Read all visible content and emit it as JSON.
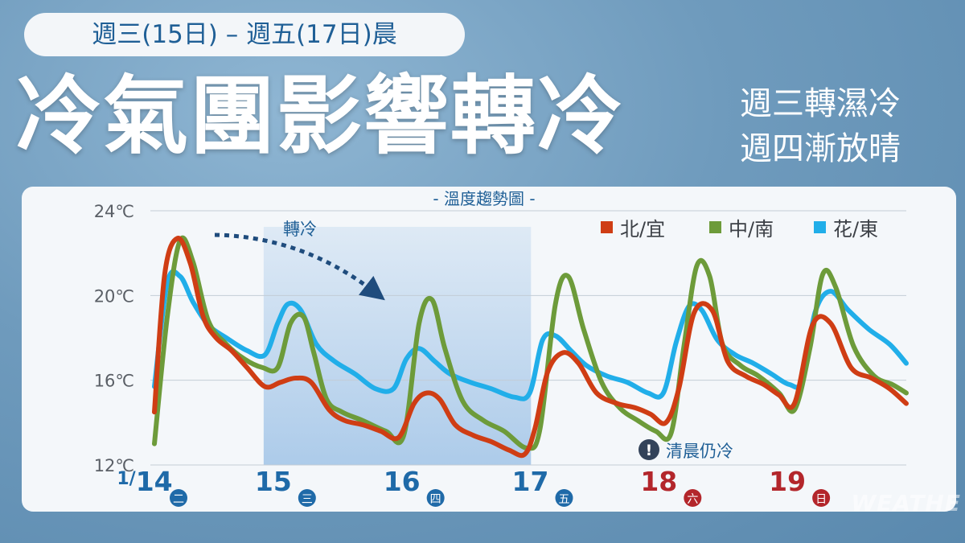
{
  "header": {
    "date_range": "週三(15日) – 週五(17日)晨",
    "headline": "冷氣團影響轉冷",
    "subline_1": "週三轉濕冷",
    "subline_2": "週四漸放晴"
  },
  "watermark": "WEATHE",
  "colors": {
    "north_yi": "#cf3d14",
    "central_south": "#6d9b3a",
    "hua_tung": "#21aee9",
    "date_blue": "#1f6aa8",
    "weekend_red": "#b3262b",
    "highlight": "#a8c8e8",
    "arrow": "#1f4c7d"
  },
  "chart_data": {
    "type": "line",
    "title": "- 溫度趨勢圖 -",
    "ylim": [
      12,
      24
    ],
    "y_ticks": [
      24,
      20,
      16,
      12
    ],
    "y_tick_labels": [
      "24℃",
      "20℃",
      "16℃",
      "12℃"
    ],
    "xlim": [
      0,
      5.85
    ],
    "x_day_labels": [
      {
        "prefix": "1/",
        "day": "14",
        "weekday": "二",
        "weekend": false
      },
      {
        "prefix": "",
        "day": "15",
        "weekday": "三",
        "weekend": false
      },
      {
        "prefix": "",
        "day": "16",
        "weekday": "四",
        "weekend": false
      },
      {
        "prefix": "",
        "day": "17",
        "weekday": "五",
        "weekend": false
      },
      {
        "prefix": "",
        "day": "18",
        "weekday": "六",
        "weekend": true
      },
      {
        "prefix": "",
        "day": "19",
        "weekday": "日",
        "weekend": true
      }
    ],
    "highlight_range": [
      0.85,
      2.93
    ],
    "grid": true,
    "legend_position": "top-right",
    "annotations": {
      "cooling": "轉冷",
      "morning_cold": "清晨仍冷",
      "alert_symbol": "!"
    },
    "series": [
      {
        "name": "北/宜",
        "color_key": "north_yi",
        "x": [
          0,
          0.08,
          0.18,
          0.28,
          0.38,
          0.48,
          0.6,
          0.72,
          0.86,
          0.98,
          1.1,
          1.22,
          1.36,
          1.48,
          1.62,
          1.76,
          1.9,
          2.02,
          2.12,
          2.22,
          2.34,
          2.48,
          2.62,
          2.76,
          2.88,
          2.96,
          3.06,
          3.18,
          3.3,
          3.44,
          3.6,
          3.74,
          3.86,
          3.98,
          4.08,
          4.2,
          4.34,
          4.46,
          4.6,
          4.74,
          4.86,
          4.98,
          5.12,
          5.26,
          5.42,
          5.58,
          5.72,
          5.85
        ],
        "y": [
          14.5,
          21.0,
          22.7,
          21.5,
          19.0,
          18.0,
          17.4,
          16.6,
          15.7,
          15.9,
          16.1,
          15.9,
          14.6,
          14.1,
          13.9,
          13.6,
          13.3,
          14.9,
          15.4,
          15.1,
          13.9,
          13.4,
          13.1,
          12.7,
          12.5,
          13.7,
          16.4,
          17.3,
          16.8,
          15.4,
          14.9,
          14.7,
          14.4,
          14.0,
          15.6,
          19.2,
          19.3,
          16.9,
          16.2,
          15.8,
          15.3,
          14.9,
          18.6,
          18.7,
          16.6,
          16.1,
          15.6,
          14.9
        ]
      },
      {
        "name": "中/南",
        "color_key": "central_south",
        "x": [
          0,
          0.1,
          0.2,
          0.3,
          0.42,
          0.56,
          0.7,
          0.84,
          0.96,
          1.06,
          1.16,
          1.24,
          1.34,
          1.46,
          1.62,
          1.8,
          1.94,
          2.06,
          2.16,
          2.26,
          2.4,
          2.56,
          2.72,
          2.9,
          3.0,
          3.12,
          3.22,
          3.34,
          3.48,
          3.62,
          3.76,
          3.9,
          4.02,
          4.12,
          4.22,
          4.32,
          4.42,
          4.56,
          4.7,
          4.86,
          4.98,
          5.1,
          5.2,
          5.3,
          5.44,
          5.6,
          5.74,
          5.85
        ],
        "y": [
          13.0,
          19.0,
          22.6,
          21.6,
          18.8,
          17.7,
          17.0,
          16.6,
          16.6,
          18.7,
          19.0,
          17.3,
          15.1,
          14.5,
          14.1,
          13.6,
          13.4,
          18.7,
          19.8,
          17.5,
          15.0,
          14.1,
          13.6,
          12.8,
          13.7,
          19.6,
          20.9,
          18.4,
          15.9,
          14.7,
          14.1,
          13.6,
          13.5,
          17.6,
          21.4,
          20.9,
          17.7,
          16.7,
          16.2,
          15.4,
          14.6,
          17.5,
          21.0,
          20.4,
          17.6,
          16.2,
          15.8,
          15.4
        ]
      },
      {
        "name": "花/東",
        "color_key": "hua_tung",
        "x": [
          0,
          0.1,
          0.2,
          0.3,
          0.42,
          0.56,
          0.72,
          0.86,
          0.96,
          1.04,
          1.14,
          1.26,
          1.4,
          1.56,
          1.72,
          1.86,
          1.96,
          2.06,
          2.18,
          2.3,
          2.46,
          2.62,
          2.8,
          2.92,
          3.02,
          3.12,
          3.24,
          3.36,
          3.52,
          3.68,
          3.84,
          3.96,
          4.06,
          4.16,
          4.26,
          4.38,
          4.52,
          4.66,
          4.8,
          4.94,
          5.04,
          5.14,
          5.26,
          5.4,
          5.56,
          5.72,
          5.85
        ],
        "y": [
          15.7,
          20.6,
          20.9,
          19.7,
          18.6,
          18.0,
          17.4,
          17.2,
          18.7,
          19.6,
          19.3,
          17.7,
          16.9,
          16.3,
          15.6,
          15.6,
          17.0,
          17.5,
          16.9,
          16.3,
          15.9,
          15.6,
          15.2,
          15.4,
          17.9,
          18.1,
          17.4,
          16.7,
          16.2,
          15.9,
          15.4,
          15.4,
          17.8,
          19.5,
          19.3,
          17.9,
          17.2,
          16.8,
          16.3,
          15.8,
          16.0,
          19.2,
          20.2,
          19.3,
          18.4,
          17.7,
          16.8
        ]
      }
    ]
  }
}
